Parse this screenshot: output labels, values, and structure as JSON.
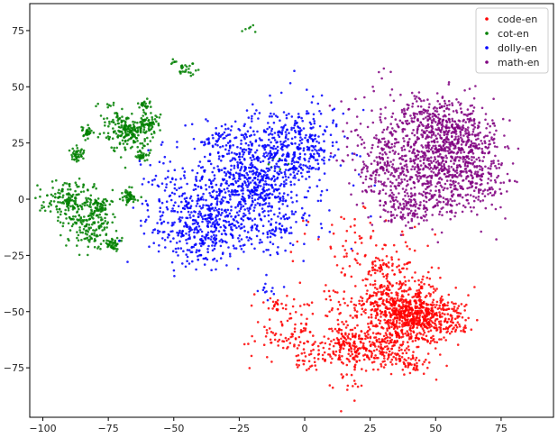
{
  "chart_data": {
    "type": "scatter",
    "xlim": [
      -105,
      95
    ],
    "ylim": [
      -97,
      87
    ],
    "x_ticks": [
      -100,
      -75,
      -50,
      -25,
      0,
      25,
      50,
      75
    ],
    "y_ticks": [
      -75,
      -50,
      -25,
      0,
      25,
      50,
      75
    ],
    "legend_position": "top-right",
    "grid": false,
    "series": [
      {
        "name": "code-en",
        "color": "#ff0000",
        "clusters": [
          {
            "cx": 45,
            "cy": -53,
            "sx": 8,
            "sy": 5,
            "n": 500
          },
          {
            "cx": 33,
            "cy": -48,
            "sx": 7,
            "sy": 6,
            "n": 260
          },
          {
            "cx": 30,
            "cy": -66,
            "sx": 10,
            "sy": 5,
            "n": 240
          },
          {
            "cx": 18,
            "cy": -65,
            "sx": 7,
            "sy": 5,
            "n": 120
          },
          {
            "cx": 35,
            "cy": -40,
            "sx": 8,
            "sy": 9,
            "n": 140
          },
          {
            "cx": 8,
            "cy": -55,
            "sx": 12,
            "sy": 10,
            "n": 110
          },
          {
            "cx": -7,
            "cy": -62,
            "sx": 7,
            "sy": 7,
            "n": 60
          },
          {
            "cx": 20,
            "cy": -20,
            "sx": 12,
            "sy": 8,
            "n": 60
          },
          {
            "cx": 30,
            "cy": -30,
            "sx": 5,
            "sy": 3,
            "n": 40
          },
          {
            "cx": 40,
            "cy": -74,
            "sx": 2,
            "sy": 1.5,
            "n": 25
          },
          {
            "cx": -10,
            "cy": -47,
            "sx": 3,
            "sy": 2,
            "n": 20
          },
          {
            "cx": 0,
            "cy": -72,
            "sx": 3,
            "sy": 3,
            "n": 15
          },
          {
            "cx": 15,
            "cy": -82,
            "sx": 4,
            "sy": 3,
            "n": 15
          }
        ]
      },
      {
        "name": "cot-en",
        "color": "#008000",
        "clusters": [
          {
            "cx": -67,
            "cy": 30,
            "sx": 4,
            "sy": 4,
            "n": 200
          },
          {
            "cx": -60,
            "cy": 34,
            "sx": 2,
            "sy": 2,
            "n": 60
          },
          {
            "cx": -90,
            "cy": 0,
            "sx": 5,
            "sy": 4,
            "n": 160
          },
          {
            "cx": -82,
            "cy": -12,
            "sx": 5,
            "sy": 5,
            "n": 160
          },
          {
            "cx": -78,
            "cy": -3,
            "sx": 2,
            "sy": 2,
            "n": 50
          },
          {
            "cx": -67,
            "cy": 1,
            "sx": 1.5,
            "sy": 1.5,
            "n": 50
          },
          {
            "cx": -87,
            "cy": 20,
            "sx": 1.5,
            "sy": 1.5,
            "n": 40
          },
          {
            "cx": -83,
            "cy": 30,
            "sx": 1.2,
            "sy": 1.2,
            "n": 30
          },
          {
            "cx": -73,
            "cy": -20,
            "sx": 1.8,
            "sy": 1.5,
            "n": 40
          },
          {
            "cx": -62,
            "cy": 19,
            "sx": 1.2,
            "sy": 1,
            "n": 25
          },
          {
            "cx": -61,
            "cy": 42,
            "sx": 1.2,
            "sy": 1,
            "n": 25
          },
          {
            "cx": -75,
            "cy": 40,
            "sx": 3,
            "sy": 3,
            "n": 15
          },
          {
            "cx": -45,
            "cy": 58,
            "sx": 2,
            "sy": 1.5,
            "n": 25
          },
          {
            "cx": -50,
            "cy": 61,
            "sx": 0.8,
            "sy": 0.8,
            "n": 6
          },
          {
            "cx": -20,
            "cy": 76,
            "sx": 2,
            "sy": 2,
            "n": 6
          },
          {
            "cx": -12,
            "cy": 15,
            "sx": 2,
            "sy": 2,
            "n": 6
          }
        ]
      },
      {
        "name": "dolly-en",
        "color": "#0000ff",
        "clusters": [
          {
            "cx": -7,
            "cy": 23,
            "sx": 10,
            "sy": 9,
            "n": 450
          },
          {
            "cx": -30,
            "cy": 0,
            "sx": 14,
            "sy": 12,
            "n": 600
          },
          {
            "cx": -40,
            "cy": -15,
            "sx": 10,
            "sy": 8,
            "n": 250
          },
          {
            "cx": -18,
            "cy": 8,
            "sx": 6,
            "sy": 6,
            "n": 150
          },
          {
            "cx": -30,
            "cy": 25,
            "sx": 6,
            "sy": 5,
            "n": 70
          },
          {
            "cx": -10,
            "cy": -12,
            "sx": 6,
            "sy": 6,
            "n": 70
          },
          {
            "cx": -15,
            "cy": -40,
            "sx": 3,
            "sy": 2,
            "n": 12
          }
        ]
      },
      {
        "name": "math-en",
        "color": "#800080",
        "clusters": [
          {
            "cx": 58,
            "cy": 25,
            "sx": 9,
            "sy": 7,
            "n": 420
          },
          {
            "cx": 48,
            "cy": 35,
            "sx": 8,
            "sy": 6,
            "n": 250
          },
          {
            "cx": 40,
            "cy": 12,
            "sx": 10,
            "sy": 9,
            "n": 350
          },
          {
            "cx": 62,
            "cy": 8,
            "sx": 8,
            "sy": 7,
            "n": 250
          },
          {
            "cx": 40,
            "cy": -5,
            "sx": 7,
            "sy": 4,
            "n": 120
          },
          {
            "cx": 28,
            "cy": 20,
            "sx": 6,
            "sy": 8,
            "n": 100
          },
          {
            "cx": 32,
            "cy": 58,
            "sx": 3,
            "sy": 2,
            "n": 4
          },
          {
            "cx": 25,
            "cy": 37,
            "sx": 8,
            "sy": 5,
            "n": 20
          }
        ]
      }
    ]
  }
}
